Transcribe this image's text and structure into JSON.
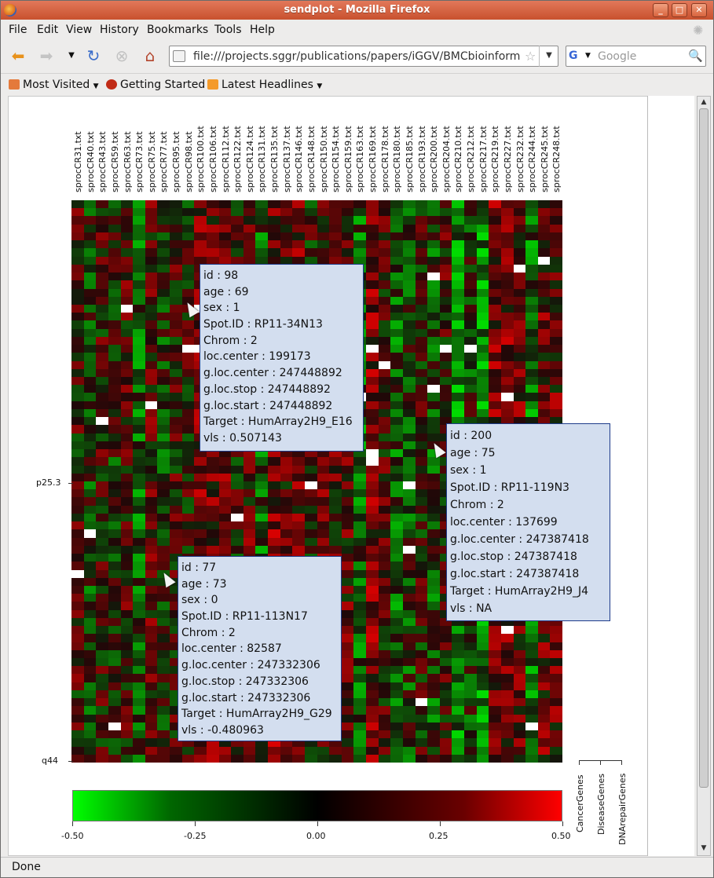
{
  "window": {
    "title": "sendplot - Mozilla Firefox"
  },
  "window_buttons": [
    "_",
    "□",
    "✕"
  ],
  "menu": [
    "File",
    "Edit",
    "View",
    "History",
    "Bookmarks",
    "Tools",
    "Help"
  ],
  "nav": {
    "url": "file:///projects.sggr/publications/papers/iGGV/BMCbioinformatics/e",
    "search_engine": "G",
    "search_placeholder": "Google"
  },
  "bookmarks": [
    "Most Visited",
    "Getting Started",
    "Latest Headlines"
  ],
  "status": "Done",
  "plot": {
    "columns": [
      "sprocCR31.txt",
      "sprocCR40.txt",
      "sprocCR43.txt",
      "sprocCR59.txt",
      "sprocCR63.txt",
      "sprocCR73.txt",
      "sprocCR75.txt",
      "sprocCR77.txt",
      "sprocCR95.txt",
      "sprocCR98.txt",
      "sprocCR100.txt",
      "sprocCR106.txt",
      "sprocCR112.txt",
      "sprocCR122.txt",
      "sprocCR124.txt",
      "sprocCR131.txt",
      "sprocCR135.txt",
      "sprocCR137.txt",
      "sprocCR146.txt",
      "sprocCR148.txt",
      "sprocCR150.txt",
      "sprocCR154.txt",
      "sprocCR159.txt",
      "sprocCR163.txt",
      "sprocCR169.txt",
      "sprocCR178.txt",
      "sprocCR180.txt",
      "sprocCR185.txt",
      "sprocCR193.txt",
      "sprocCR200.txt",
      "sprocCR204.txt",
      "sprocCR210.txt",
      "sprocCR212.txt",
      "sprocCR217.txt",
      "sprocCR219.txt",
      "sprocCR227.txt",
      "sprocCR232.txt",
      "sprocCR244.txt",
      "sprocCR245.txt",
      "sprocCR248.txt"
    ],
    "row_labels": {
      "p25": "p25.3",
      "q44": "q44"
    },
    "colorbar": {
      "labels": [
        "-0.50",
        "-0.25",
        "0.00",
        "0.25",
        "0.50"
      ],
      "low_color": "#00ff00",
      "mid_color": "#000000",
      "high_color": "#ff0000"
    },
    "gene_tracks": [
      "CancerGenes",
      "DiseaseGenes",
      "DNArepairGenes"
    ]
  },
  "tooltips": [
    {
      "lines": [
        "id  : 98",
        "age  : 69",
        "sex  : 1",
        "Spot.ID  : RP11-34N13",
        "Chrom  : 2",
        "loc.center  : 199173",
        "g.loc.center  : 247448892",
        "g.loc.stop  : 247448892",
        "g.loc.start  : 247448892",
        "Target  : HumArray2H9_E16",
        "vls  : 0.507143"
      ]
    },
    {
      "lines": [
        "id  : 200",
        "age  : 75",
        "sex  : 1",
        "Spot.ID  : RP11-119N3",
        "Chrom  : 2",
        "loc.center  : 137699",
        "g.loc.center  : 247387418",
        "g.loc.stop  : 247387418",
        "g.loc.start  : 247387418",
        "Target  : HumArray2H9_J4",
        "vls  : NA"
      ]
    },
    {
      "lines": [
        "id  : 77",
        "age  : 73",
        "sex  : 0",
        "Spot.ID  : RP11-113N17",
        "Chrom  : 2",
        "loc.center  : 82587",
        "g.loc.center  : 247332306",
        "g.loc.stop  : 247332306",
        "g.loc.start  : 247332306",
        "Target  : HumArray2H9_G29",
        "vls  : -0.480963"
      ]
    }
  ]
}
